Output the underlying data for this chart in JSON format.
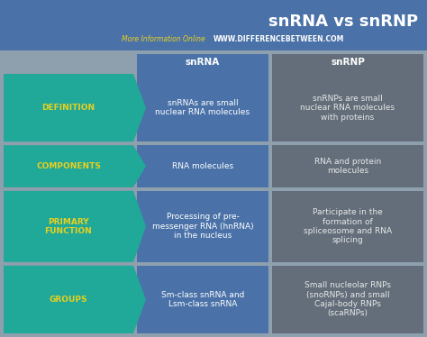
{
  "title": "snRNA vs snRNP",
  "subtitle_left": "More Information Online",
  "subtitle_right": "WWW.DIFFERENCEBETWEEN.COM",
  "col1_header": "snRNA",
  "col2_header": "snRNP",
  "rows": [
    {
      "label": "DEFINITION",
      "col1": "snRNAs are small\nnuclear RNA molecules",
      "col2": "snRNPs are small\nnuclear RNA molecules\nwith proteins"
    },
    {
      "label": "COMPONENTS",
      "col1": "RNA molecules",
      "col2": "RNA and protein\nmolecules"
    },
    {
      "label": "PRIMARY\nFUNCTION",
      "col1": "Processing of pre-\nmessenger RNA (hnRNA)\nin the nucleus",
      "col2": "Participate in the\nformation of\nspliceosome and RNA\nsplicing"
    },
    {
      "label": "GROUPS",
      "col1": "Sm-class snRNA and\nLsm-class snRNA",
      "col2": "Small nucleolar RNPs\n(snoRNPs) and small\nCajal-body RNPs\n(scaRNPs)"
    }
  ],
  "bg_color": "#8e9fae",
  "top_header_bg": "#4a72a8",
  "col1_bg": "#4a72a8",
  "col2_bg": "#636e7a",
  "label_bg": "#20a898",
  "title_color": "#ffffff",
  "header_text_color": "#ffffff",
  "col1_text_color": "#ffffff",
  "col2_text_color": "#e8e8e8",
  "label_text_color": "#e8d020",
  "subtitle_left_color": "#e8d020",
  "subtitle_right_color": "#ffffff",
  "figw": 4.74,
  "figh": 3.74,
  "dpi": 100
}
